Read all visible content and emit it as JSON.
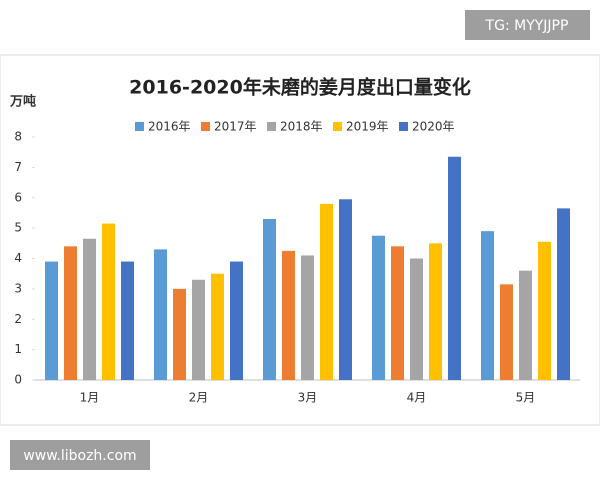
{
  "chart_data": {
    "type": "bar",
    "title": "2016-2020年未磨的姜月度出口量变化",
    "ylabel": "万吨",
    "categories": [
      "1月",
      "2月",
      "3月",
      "4月",
      "5月"
    ],
    "series": [
      {
        "name": "2016年",
        "color": "#5b9bd5",
        "values": [
          3.9,
          4.3,
          5.3,
          4.75,
          4.9
        ]
      },
      {
        "name": "2017年",
        "color": "#ed7d31",
        "values": [
          4.4,
          3.0,
          4.25,
          4.4,
          3.15
        ]
      },
      {
        "name": "2018年",
        "color": "#a5a5a5",
        "values": [
          4.65,
          3.3,
          4.1,
          4.0,
          3.6
        ]
      },
      {
        "name": "2019年",
        "color": "#ffc000",
        "values": [
          5.15,
          3.5,
          5.8,
          4.5,
          4.55
        ]
      },
      {
        "name": "2020年",
        "color": "#4472c4",
        "values": [
          3.9,
          3.9,
          5.95,
          7.35,
          5.65
        ]
      }
    ],
    "ylim": [
      0,
      8
    ],
    "yticks": [
      0,
      1,
      2,
      3,
      4,
      5,
      6,
      7,
      8
    ],
    "grid": false,
    "legend": "top"
  },
  "watermarks": {
    "top_right": "TG: MYYJJPP",
    "bottom_left": "www.libozh.com"
  }
}
